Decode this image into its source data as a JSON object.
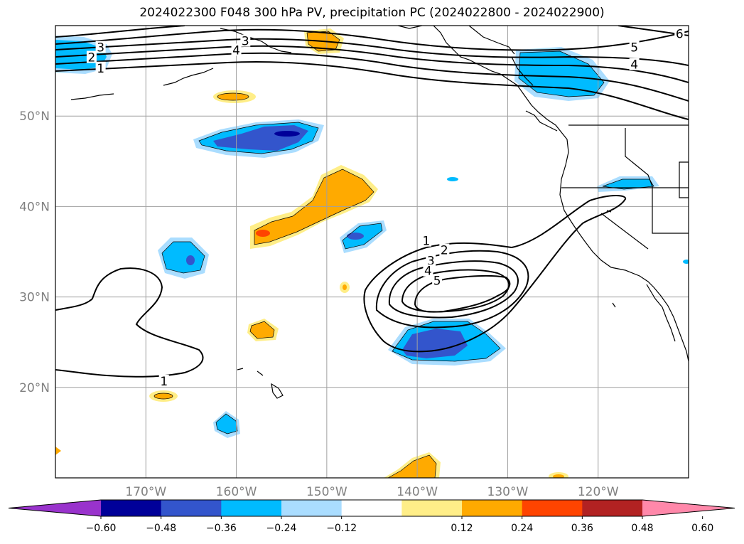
{
  "title": "2024022300 F048 300 hPa PV, precipitation PC (2024022800 - 2024022900)",
  "map": {
    "lon_min": -180,
    "lon_max": -110,
    "lat_min": 10,
    "lat_max": 60,
    "lon_ticks": [
      {
        "value": -170,
        "label": "170°W"
      },
      {
        "value": -160,
        "label": "160°W"
      },
      {
        "value": -150,
        "label": "150°W"
      },
      {
        "value": -140,
        "label": "140°W"
      },
      {
        "value": -130,
        "label": "130°W"
      },
      {
        "value": -120,
        "label": "120°W"
      }
    ],
    "lat_ticks": [
      {
        "value": 20,
        "label": "20°N"
      },
      {
        "value": 30,
        "label": "30°N"
      },
      {
        "value": 40,
        "label": "40°N"
      },
      {
        "value": 50,
        "label": "50°N"
      }
    ],
    "grid": true
  },
  "colorbar": {
    "extend": "both",
    "colors": [
      "#9933cc",
      "#000099",
      "#3355cc",
      "#00bbff",
      "#aaddff",
      "#ffffff",
      "#ffee88",
      "#ffaa00",
      "#ff4400",
      "#b22222",
      "#ff88aa"
    ],
    "ticks": [
      {
        "value": -0.6,
        "label": "−0.60"
      },
      {
        "value": -0.48,
        "label": "−0.48"
      },
      {
        "value": -0.36,
        "label": "−0.36"
      },
      {
        "value": -0.24,
        "label": "−0.24"
      },
      {
        "value": -0.12,
        "label": "−0.12"
      },
      {
        "value": 0.12,
        "label": "0.12"
      },
      {
        "value": 0.24,
        "label": "0.24"
      },
      {
        "value": 0.36,
        "label": "0.36"
      },
      {
        "value": 0.48,
        "label": "0.48"
      },
      {
        "value": 0.6,
        "label": "0.60"
      }
    ]
  },
  "pv_contour_labels": [
    {
      "text": "3",
      "lon": -175.0,
      "lat": 57.6
    },
    {
      "text": "2",
      "lon": -176.0,
      "lat": 56.5
    },
    {
      "text": "1",
      "lon": -175.0,
      "lat": 55.3
    },
    {
      "text": "3",
      "lon": -159.0,
      "lat": 58.3
    },
    {
      "text": "4",
      "lon": -160.0,
      "lat": 57.3
    },
    {
      "text": "5",
      "lon": -116.0,
      "lat": 57.6
    },
    {
      "text": "4",
      "lon": -116.0,
      "lat": 55.7
    },
    {
      "text": "6",
      "lon": -111.0,
      "lat": 59.1
    },
    {
      "text": "1",
      "lon": -139.0,
      "lat": 36.2
    },
    {
      "text": "2",
      "lon": -137.0,
      "lat": 35.2
    },
    {
      "text": "3",
      "lon": -138.5,
      "lat": 34.0
    },
    {
      "text": "4",
      "lon": -138.8,
      "lat": 32.9
    },
    {
      "text": "5",
      "lon": -137.8,
      "lat": 31.8
    },
    {
      "text": "1",
      "lon": -168.0,
      "lat": 20.7
    }
  ]
}
